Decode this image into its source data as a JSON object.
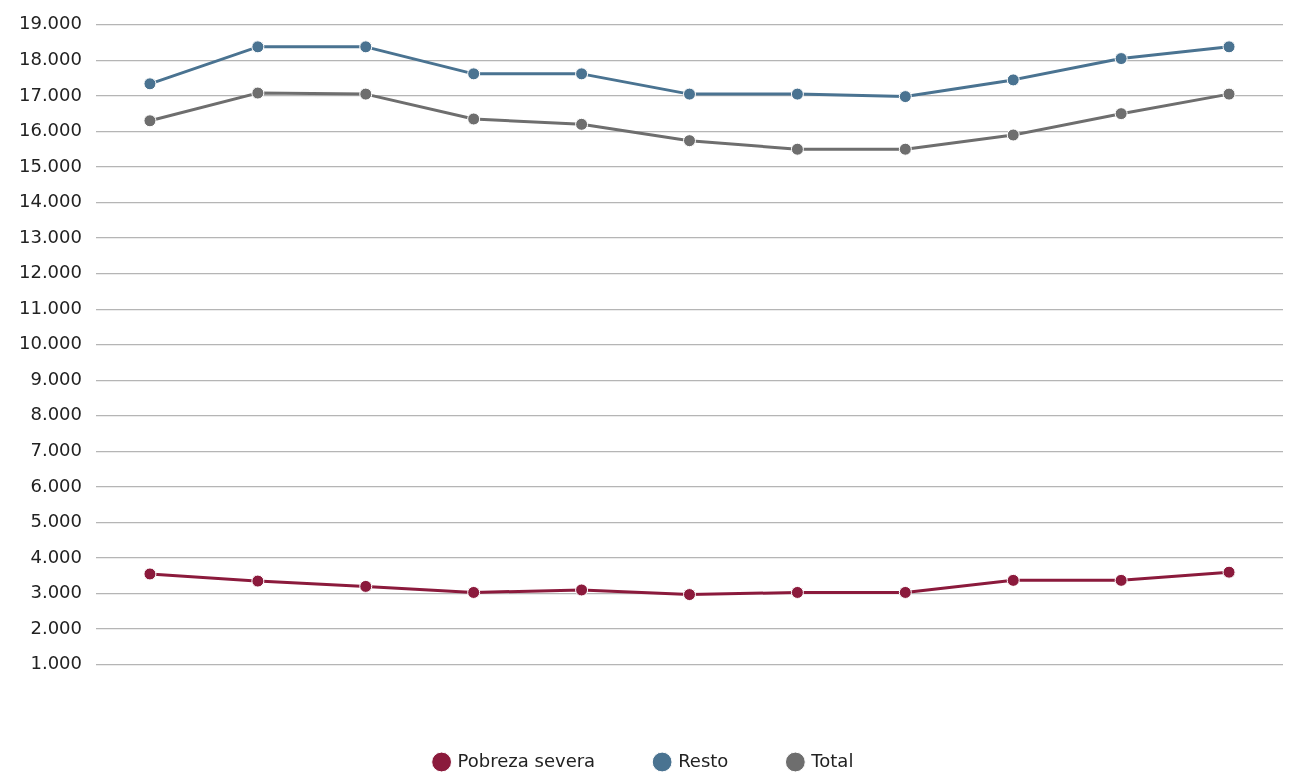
{
  "chart_data": {
    "type": "line",
    "categories": [
      null,
      null,
      null,
      null,
      null,
      null,
      null,
      null,
      null,
      null,
      null
    ],
    "series": [
      {
        "name": "Pobreza severa",
        "color": "#8b1a3c",
        "values": [
          3550,
          3350,
          3200,
          3030,
          3100,
          2970,
          3030,
          3030,
          3370,
          3370,
          3600
        ]
      },
      {
        "name": "Resto",
        "color": "#4a7391",
        "values": [
          17340,
          18380,
          18380,
          17620,
          17620,
          17050,
          17050,
          16980,
          17450,
          18050,
          18380
        ]
      },
      {
        "name": "Total",
        "color": "#6e6e6e",
        "values": [
          16300,
          17080,
          17050,
          16350,
          16200,
          15740,
          15500,
          15500,
          15900,
          16500,
          17050
        ]
      }
    ],
    "ylim": [
      1000,
      19000
    ],
    "yticks": [
      {
        "value": 1000,
        "label": "1.000"
      },
      {
        "value": 2000,
        "label": "2.000"
      },
      {
        "value": 3000,
        "label": "3.000"
      },
      {
        "value": 4000,
        "label": "4.000"
      },
      {
        "value": 5000,
        "label": "5.000"
      },
      {
        "value": 6000,
        "label": "6.000"
      },
      {
        "value": 7000,
        "label": "7.000"
      },
      {
        "value": 8000,
        "label": "8.000"
      },
      {
        "value": 9000,
        "label": "9.000"
      },
      {
        "value": 10000,
        "label": "10.000"
      },
      {
        "value": 11000,
        "label": "11.000"
      },
      {
        "value": 12000,
        "label": "12.000"
      },
      {
        "value": 13000,
        "label": "13.000"
      },
      {
        "value": 14000,
        "label": "14.000"
      },
      {
        "value": 15000,
        "label": "15.000"
      },
      {
        "value": 16000,
        "label": "16.000"
      },
      {
        "value": 17000,
        "label": "17.000"
      },
      {
        "value": 18000,
        "label": "18.000"
      },
      {
        "value": 19000,
        "label": "19.000"
      }
    ],
    "grid": "y",
    "legend": "bottom",
    "marker": "circle",
    "line_style": "solid"
  }
}
